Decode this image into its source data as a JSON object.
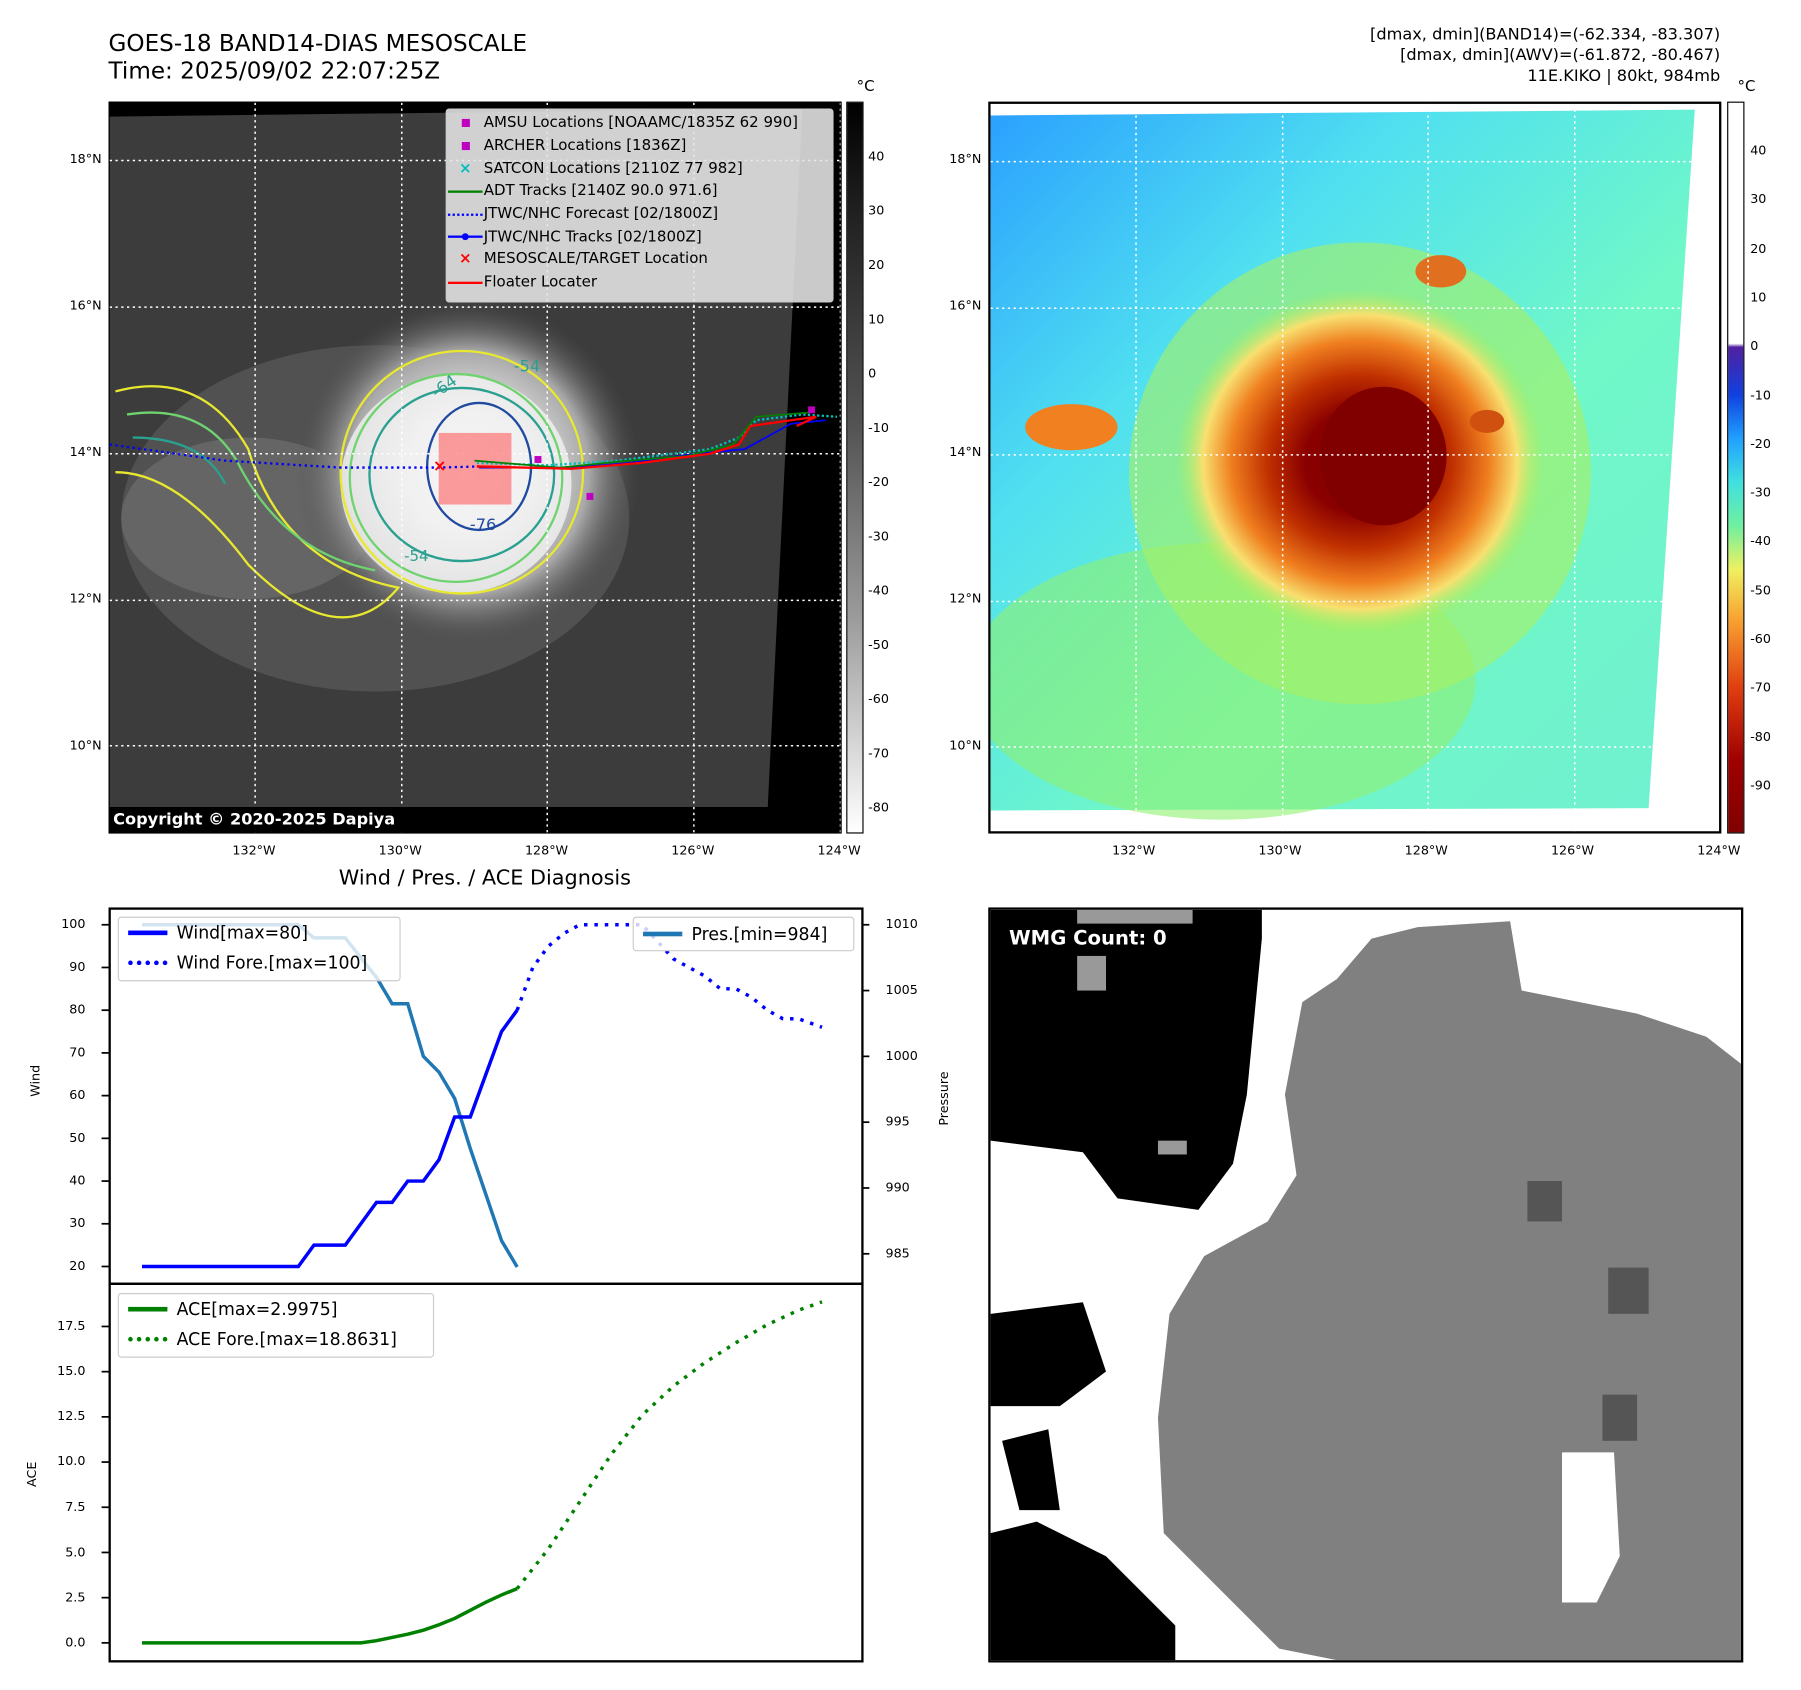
{
  "left_map": {
    "title_line1": "GOES-18 BAND14-DIAS MESOSCALE",
    "title_line2": "Time: 2025/09/02 22:07:25Z",
    "colorbar_unit": "°C",
    "colorbar_ticks": [
      "40",
      "30",
      "20",
      "10",
      "0",
      "-10",
      "-20",
      "-30",
      "-40",
      "-50",
      "-60",
      "-70",
      "-80"
    ],
    "lat_labels": [
      "18°N",
      "16°N",
      "14°N",
      "12°N",
      "10°N"
    ],
    "lon_labels": [
      "132°W",
      "130°W",
      "128°W",
      "126°W",
      "124°W"
    ],
    "copyright": "Copyright © 2020-2025 Dapiya",
    "contour_labels": [
      "-54",
      "-64",
      "-76",
      "-54"
    ],
    "legend": [
      {
        "label": "AMSU Locations [NOAAMC/1835Z 62 990]",
        "color": "#c000c0",
        "marker": "square"
      },
      {
        "label": "ARCHER Locations [1836Z]",
        "color": "#c000c0",
        "marker": "square"
      },
      {
        "label": "SATCON Locations [2110Z 77 982]",
        "color": "#00bfbf",
        "marker": "x"
      },
      {
        "label": "ADT Tracks [2140Z 90.0 971.6]",
        "color": "#008000",
        "marker": "line"
      },
      {
        "label": "JTWC/NHC Forecast [02/1800Z]",
        "color": "#0000ff",
        "marker": "dotted"
      },
      {
        "label": "JTWC/NHC Tracks [02/1800Z]",
        "color": "#0000ff",
        "marker": "line-dot"
      },
      {
        "label": "MESOSCALE/TARGET Location",
        "color": "#ff0000",
        "marker": "x"
      },
      {
        "label": "Floater Locater",
        "color": "#ff0000",
        "marker": "line"
      }
    ]
  },
  "right_map": {
    "info_line1": "[dmax, dmin](BAND14)=(-62.334, -83.307)",
    "info_line2": "[dmax, dmin](AWV)=(-61.872, -80.467)",
    "info_line3": "11E.KIKO | 80kt, 984mb",
    "colorbar_unit": "°C",
    "colorbar_ticks": [
      "40",
      "30",
      "20",
      "10",
      "0",
      "-10",
      "-20",
      "-30",
      "-40",
      "-50",
      "-60",
      "-70",
      "-80",
      "-90"
    ],
    "lat_labels": [
      "18°N",
      "16°N",
      "14°N",
      "12°N",
      "10°N"
    ],
    "lon_labels": [
      "132°W",
      "130°W",
      "128°W",
      "126°W",
      "124°W"
    ]
  },
  "wmg": {
    "label": "WMG Count: 0"
  },
  "chart_data": [
    {
      "type": "line",
      "title": "Wind / Pres. / ACE Diagnosis",
      "ylabel": "Wind",
      "y2label": "Pressure",
      "ylim": [
        17,
        104
      ],
      "y2lim": [
        983,
        1011
      ],
      "yticks": [
        "100",
        "90",
        "80",
        "70",
        "60",
        "50",
        "40",
        "30",
        "20"
      ],
      "y2ticks": [
        "1010",
        "1005",
        "1000",
        "995",
        "990",
        "985"
      ],
      "series": [
        {
          "name": "Wind[max=80]",
          "color": "#0000ff",
          "style": "solid",
          "x": [
            0,
            1,
            2,
            3,
            4,
            5,
            6,
            7,
            8,
            9,
            10,
            11,
            12,
            13,
            14,
            15,
            16,
            17,
            18,
            19,
            20,
            21,
            22,
            23,
            24
          ],
          "values": [
            20,
            20,
            20,
            20,
            20,
            20,
            20,
            20,
            20,
            20,
            20,
            25,
            25,
            25,
            30,
            35,
            35,
            40,
            40,
            45,
            55,
            55,
            65,
            75,
            80
          ]
        },
        {
          "name": "Wind Fore.[max=100]",
          "color": "#0000ff",
          "style": "dotted",
          "x": [
            24,
            25,
            26,
            27,
            28,
            29,
            30,
            31,
            32,
            33,
            34,
            35,
            36,
            37,
            38,
            39,
            40,
            41,
            42,
            43.5
          ],
          "values": [
            80,
            90,
            95,
            98,
            100,
            100,
            100,
            100,
            100,
            96,
            92,
            90,
            88,
            85,
            85,
            83,
            80,
            78,
            78,
            76
          ]
        },
        {
          "name": "Pres.[min=984]",
          "color": "#1f77b4",
          "style": "solid",
          "axis": "right",
          "x": [
            0,
            1,
            2,
            3,
            4,
            5,
            6,
            7,
            8,
            9,
            10,
            11,
            12,
            13,
            14,
            15,
            16,
            17,
            18,
            19,
            20,
            21,
            22,
            23,
            24
          ],
          "values": [
            1010,
            1010,
            1010,
            1010,
            1010,
            1010,
            1010,
            1010,
            1010,
            1010,
            1010,
            1009,
            1009,
            1009,
            1007.5,
            1006,
            1004,
            1004,
            1000,
            998.8,
            996.8,
            993,
            989.5,
            986,
            984
          ]
        }
      ]
    },
    {
      "type": "line",
      "ylabel": "ACE",
      "ylim": [
        -1,
        19.5
      ],
      "yticks": [
        "17.5",
        "15.0",
        "12.5",
        "10.0",
        "7.5",
        "5.0",
        "2.5",
        "0.0"
      ],
      "series": [
        {
          "name": "ACE[max=2.9975]",
          "color": "#008000",
          "style": "solid",
          "x": [
            0,
            2,
            4,
            6,
            8,
            10,
            12,
            14,
            15,
            16,
            17,
            18,
            19,
            20,
            21,
            22,
            23,
            24
          ],
          "values": [
            0,
            0,
            0,
            0,
            0,
            0,
            0,
            0,
            0.12,
            0.3,
            0.48,
            0.7,
            1.0,
            1.35,
            1.8,
            2.25,
            2.65,
            3.0
          ]
        },
        {
          "name": "ACE Fore.[max=18.8631]",
          "color": "#008000",
          "style": "dotted",
          "x": [
            24,
            26,
            28,
            30,
            32,
            34,
            36,
            38,
            40,
            42,
            43.5
          ],
          "values": [
            3.0,
            5.2,
            7.8,
            10.4,
            12.6,
            14.2,
            15.5,
            16.6,
            17.6,
            18.4,
            18.86
          ]
        }
      ]
    }
  ]
}
